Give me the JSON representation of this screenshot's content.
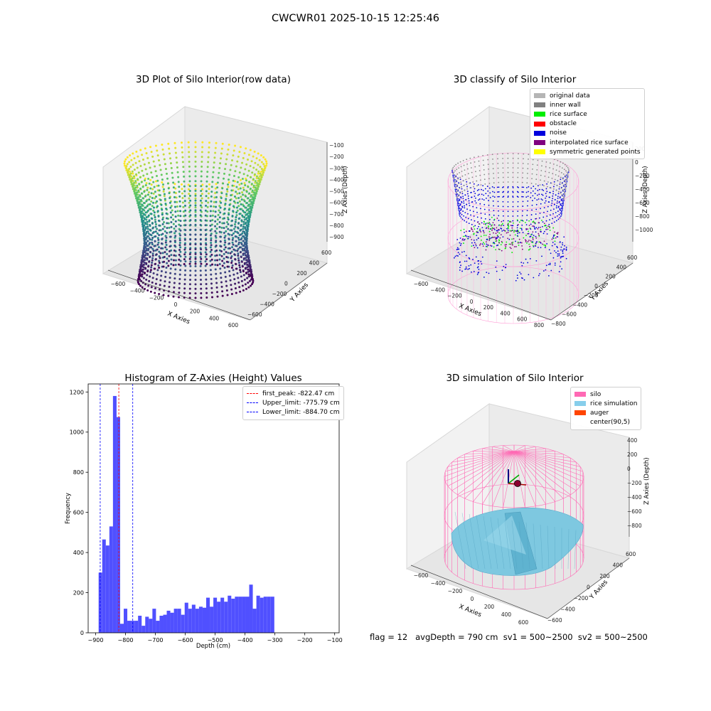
{
  "figure_title": "CWCWR01 2025-10-15 12:25:46",
  "footer": "flag = 12   avgDepth = 790 cm  sv1 = 500~2500  sv2 = 500~2500",
  "chart_data": [
    {
      "type": "scatter",
      "panel": "top-left",
      "title": "3D Plot of Silo Interior(row data)",
      "xlabel": "X Axies",
      "ylabel": "Y Axies",
      "zlabel": "Z Axies (Depth)",
      "x_ticks": [
        "−600",
        "−400",
        "−200",
        "0",
        "200",
        "400",
        "600"
      ],
      "y_ticks": [
        "−600",
        "−400",
        "−200",
        "0",
        "200",
        "400",
        "600"
      ],
      "z_ticks": [
        "−100",
        "−200",
        "−300",
        "−400",
        "−500",
        "−600",
        "−700",
        "−800",
        "−900"
      ],
      "colormap": "viridis",
      "description_values": {
        "zlim": [
          -950,
          -80
        ]
      }
    },
    {
      "type": "scatter",
      "panel": "top-right",
      "title": "3D classify of Silo Interior",
      "xlabel": "X Axies",
      "ylabel": "Y Axies",
      "zlabel": "Z Axies (Depth)",
      "x_ticks": [
        "−600",
        "−400",
        "−200",
        "0",
        "200",
        "400",
        "600",
        "800"
      ],
      "y_ticks": [
        "−800",
        "−600",
        "−400",
        "−200",
        "0",
        "200",
        "400",
        "600"
      ],
      "z_ticks": [
        "200",
        "0",
        "−200",
        "−400",
        "−600",
        "−800",
        "−1000"
      ],
      "legend": [
        {
          "label": "original data",
          "color": "#b5b5b5"
        },
        {
          "label": "inner wall",
          "color": "#808080"
        },
        {
          "label": "rice surface",
          "color": "#00ee00"
        },
        {
          "label": "obstacle",
          "color": "#ff0000"
        },
        {
          "label": "noise",
          "color": "#0000dd"
        },
        {
          "label": "interpolated rice surface",
          "color": "#800080"
        },
        {
          "label": "symmetric generated points",
          "color": "#ffff00"
        }
      ]
    },
    {
      "type": "bar",
      "panel": "bottom-left",
      "title": "Histogram of Z-Axies (Height) Values",
      "xlabel": "Depth (cm)",
      "ylabel": "Frequency",
      "xlim": [
        -925,
        -85
      ],
      "ylim": [
        0,
        1240
      ],
      "x_ticks": [
        -900,
        -800,
        -700,
        -600,
        -500,
        -400,
        -300,
        -200,
        -100
      ],
      "y_ticks": [
        0,
        200,
        400,
        600,
        800,
        1000,
        1200
      ],
      "bar_color": "#5050ff",
      "bins": [
        {
          "x0": -890,
          "x1": -878,
          "y": 300
        },
        {
          "x0": -878,
          "x1": -866,
          "y": 465
        },
        {
          "x0": -866,
          "x1": -854,
          "y": 435
        },
        {
          "x0": -854,
          "x1": -842,
          "y": 530
        },
        {
          "x0": -842,
          "x1": -830,
          "y": 1180
        },
        {
          "x0": -830,
          "x1": -818,
          "y": 1075
        },
        {
          "x0": -818,
          "x1": -806,
          "y": 45
        },
        {
          "x0": -806,
          "x1": -794,
          "y": 120
        },
        {
          "x0": -794,
          "x1": -782,
          "y": 60
        },
        {
          "x0": -782,
          "x1": -770,
          "y": 60
        },
        {
          "x0": -770,
          "x1": -758,
          "y": 60
        },
        {
          "x0": -758,
          "x1": -746,
          "y": 85
        },
        {
          "x0": -746,
          "x1": -734,
          "y": 35
        },
        {
          "x0": -734,
          "x1": -722,
          "y": 80
        },
        {
          "x0": -722,
          "x1": -710,
          "y": 70
        },
        {
          "x0": -710,
          "x1": -698,
          "y": 120
        },
        {
          "x0": -698,
          "x1": -686,
          "y": 60
        },
        {
          "x0": -686,
          "x1": -674,
          "y": 85
        },
        {
          "x0": -674,
          "x1": -662,
          "y": 90
        },
        {
          "x0": -662,
          "x1": -650,
          "y": 110
        },
        {
          "x0": -650,
          "x1": -638,
          "y": 100
        },
        {
          "x0": -638,
          "x1": -626,
          "y": 120
        },
        {
          "x0": -626,
          "x1": -614,
          "y": 120
        },
        {
          "x0": -614,
          "x1": -602,
          "y": 90
        },
        {
          "x0": -602,
          "x1": -590,
          "y": 150
        },
        {
          "x0": -590,
          "x1": -578,
          "y": 120
        },
        {
          "x0": -578,
          "x1": -566,
          "y": 140
        },
        {
          "x0": -566,
          "x1": -554,
          "y": 120
        },
        {
          "x0": -554,
          "x1": -542,
          "y": 130
        },
        {
          "x0": -542,
          "x1": -530,
          "y": 125
        },
        {
          "x0": -530,
          "x1": -518,
          "y": 175
        },
        {
          "x0": -518,
          "x1": -506,
          "y": 130
        },
        {
          "x0": -506,
          "x1": -494,
          "y": 175
        },
        {
          "x0": -494,
          "x1": -482,
          "y": 155
        },
        {
          "x0": -482,
          "x1": -470,
          "y": 175
        },
        {
          "x0": -470,
          "x1": -458,
          "y": 155
        },
        {
          "x0": -458,
          "x1": -446,
          "y": 185
        },
        {
          "x0": -446,
          "x1": -434,
          "y": 170
        },
        {
          "x0": -434,
          "x1": -422,
          "y": 180
        },
        {
          "x0": -422,
          "x1": -410,
          "y": 180
        },
        {
          "x0": -410,
          "x1": -398,
          "y": 180
        },
        {
          "x0": -398,
          "x1": -386,
          "y": 180
        },
        {
          "x0": -386,
          "x1": -374,
          "y": 240
        },
        {
          "x0": -374,
          "x1": -362,
          "y": 120
        },
        {
          "x0": -362,
          "x1": -350,
          "y": 185
        },
        {
          "x0": -350,
          "x1": -338,
          "y": 175
        },
        {
          "x0": -338,
          "x1": -326,
          "y": 180
        },
        {
          "x0": -326,
          "x1": -314,
          "y": 180
        },
        {
          "x0": -314,
          "x1": -302,
          "y": 180
        }
      ],
      "vlines": [
        {
          "label": "first_peak: -822.47 cm",
          "x": -822.47,
          "color": "#ff0000"
        },
        {
          "label": "Upper_limit: -775.79 cm",
          "x": -775.79,
          "color": "#0000ff"
        },
        {
          "label": "Lower_limit: -884.70 cm",
          "x": -884.7,
          "color": "#0000ff"
        }
      ]
    },
    {
      "type": "3d-surface",
      "panel": "bottom-right",
      "title": "3D simulation of Silo Interior",
      "xlabel": "X Axies",
      "ylabel": "Y Axies",
      "zlabel": "Z Axies (Depth)",
      "x_ticks": [
        "−600",
        "−400",
        "−200",
        "0",
        "200",
        "400",
        "600"
      ],
      "y_ticks": [
        "−600",
        "−400",
        "−200",
        "0",
        "200",
        "400",
        "600"
      ],
      "z_ticks": [
        "400",
        "200",
        "0",
        "−200",
        "−400",
        "−600",
        "−800"
      ],
      "legend": [
        {
          "label": "silo",
          "color": "#ff69b4"
        },
        {
          "label": "rice simulation",
          "color": "#87ceeb"
        },
        {
          "label": "auger",
          "color": "#ff4500"
        },
        {
          "label": "center(90,5)",
          "color": "#ffffff"
        }
      ]
    }
  ]
}
